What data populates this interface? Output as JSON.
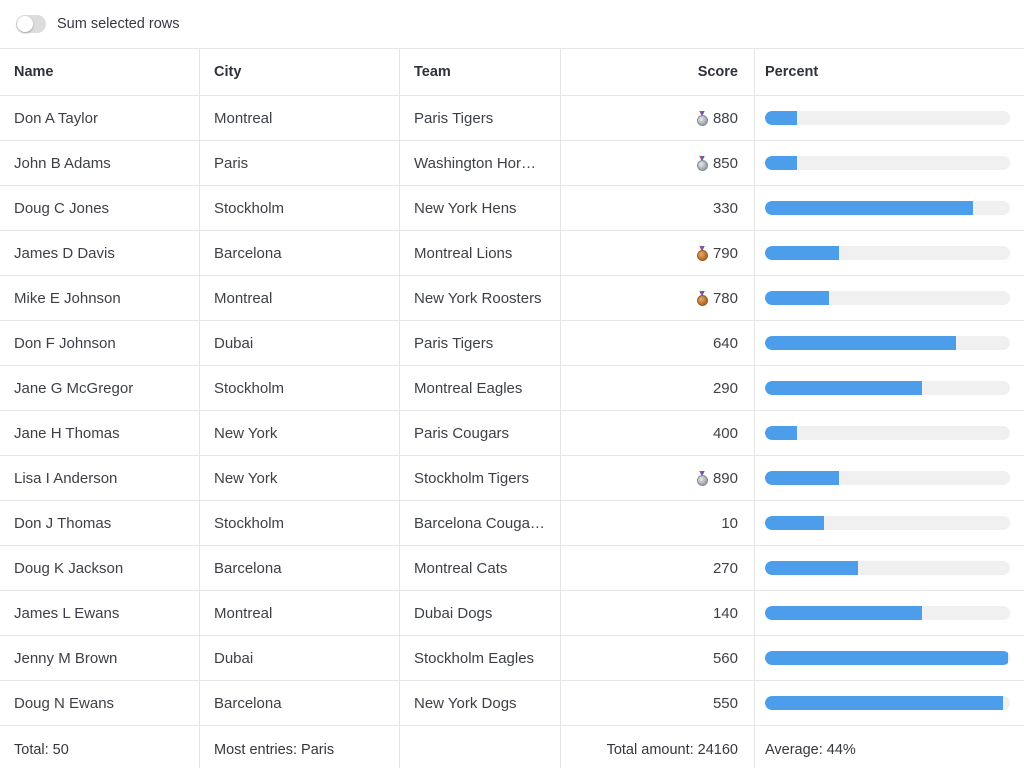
{
  "toolbar": {
    "toggle_label": "Sum selected rows",
    "toggle_state": "off"
  },
  "colors": {
    "bar_fill": "#4d9eea",
    "bar_track": "#f0f0f1",
    "border": "#e5e6e8",
    "toggle_track_off": "#dcdcdc"
  },
  "table": {
    "columns": [
      "Name",
      "City",
      "Team",
      "Score",
      "Percent"
    ],
    "rows": [
      {
        "name": "Don A Taylor",
        "city": "Montreal",
        "team": "Paris Tigers",
        "score": "880",
        "medal": "silver",
        "percent": 13
      },
      {
        "name": "John B Adams",
        "city": "Paris",
        "team": "Washington Hor…",
        "score": "850",
        "medal": "silver",
        "percent": 13
      },
      {
        "name": "Doug C Jones",
        "city": "Stockholm",
        "team": "New York Hens",
        "score": "330",
        "medal": null,
        "percent": 85
      },
      {
        "name": "James D Davis",
        "city": "Barcelona",
        "team": "Montreal Lions",
        "score": "790",
        "medal": "bronze",
        "percent": 30
      },
      {
        "name": "Mike E Johnson",
        "city": "Montreal",
        "team": "New York Roosters",
        "score": "780",
        "medal": "bronze",
        "percent": 26
      },
      {
        "name": "Don F Johnson",
        "city": "Dubai",
        "team": "Paris Tigers",
        "score": "640",
        "medal": null,
        "percent": 78
      },
      {
        "name": "Jane G McGregor",
        "city": "Stockholm",
        "team": "Montreal Eagles",
        "score": "290",
        "medal": null,
        "percent": 64
      },
      {
        "name": "Jane H Thomas",
        "city": "New York",
        "team": "Paris Cougars",
        "score": "400",
        "medal": null,
        "percent": 13
      },
      {
        "name": "Lisa I Anderson",
        "city": "New York",
        "team": "Stockholm Tigers",
        "score": "890",
        "medal": "silver",
        "percent": 30
      },
      {
        "name": "Don J Thomas",
        "city": "Stockholm",
        "team": "Barcelona Couga…",
        "score": "10",
        "medal": null,
        "percent": 24
      },
      {
        "name": "Doug K Jackson",
        "city": "Barcelona",
        "team": "Montreal Cats",
        "score": "270",
        "medal": null,
        "percent": 38
      },
      {
        "name": "James L Ewans",
        "city": "Montreal",
        "team": "Dubai Dogs",
        "score": "140",
        "medal": null,
        "percent": 64
      },
      {
        "name": "Jenny M Brown",
        "city": "Dubai",
        "team": "Stockholm Eagles",
        "score": "560",
        "medal": null,
        "percent": 99
      },
      {
        "name": "Doug N Ewans",
        "city": "Barcelona",
        "team": "New York Dogs",
        "score": "550",
        "medal": null,
        "percent": 97
      }
    ],
    "footer": {
      "total": "Total: 50",
      "most_entries": "Most entries: Paris",
      "blank": "",
      "total_amount": "Total amount: 24160",
      "average": "Average: 44%"
    }
  }
}
